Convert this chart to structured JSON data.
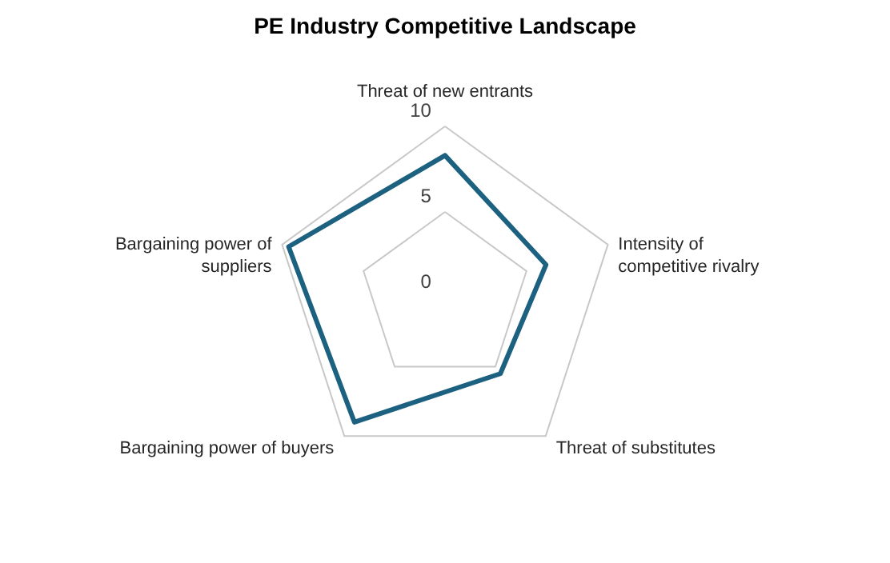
{
  "chart_data": {
    "type": "radar",
    "title": "PE Industry Competitive Landscape",
    "categories": [
      "Threat of new entrants",
      "Intensity of competitive rivalry",
      "Threat of substitutes",
      "Bargaining power of buyers",
      "Bargaining power of suppliers"
    ],
    "series": [
      {
        "color": "#1d6180",
        "values": [
          8.3,
          6.2,
          5.5,
          9.0,
          9.6
        ]
      }
    ],
    "ylim": [
      0,
      10
    ],
    "yticks": [
      0,
      5,
      10
    ],
    "grid": true
  }
}
